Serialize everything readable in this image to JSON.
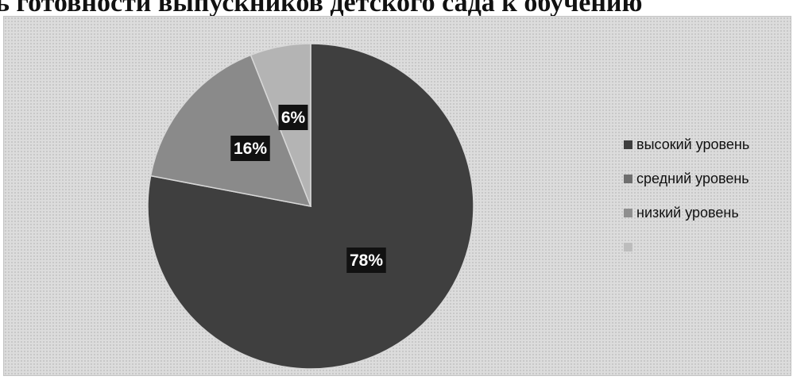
{
  "title": "ь готовности выпускников детского сада к обучению",
  "chart_data": {
    "type": "pie",
    "title": "",
    "slices": [
      {
        "label": "высокий уровень",
        "value": 78,
        "display": "78%",
        "color": "#3f3f3f"
      },
      {
        "label": "средний уровень",
        "value": 16,
        "display": "16%",
        "color": "#8a8a8a"
      },
      {
        "label": "низкий уровень",
        "value": 6,
        "display": "6%",
        "color": "#b4b4b4"
      }
    ],
    "legend": {
      "placement": "right",
      "entries": [
        "высокий уровень",
        "средний уровень",
        "низкий уровень",
        ""
      ],
      "colors": [
        "#3f3f3f",
        "#6f6f6f",
        "#8f8f8f",
        "#bdbdbd"
      ]
    },
    "data_label_background": "#111111"
  }
}
